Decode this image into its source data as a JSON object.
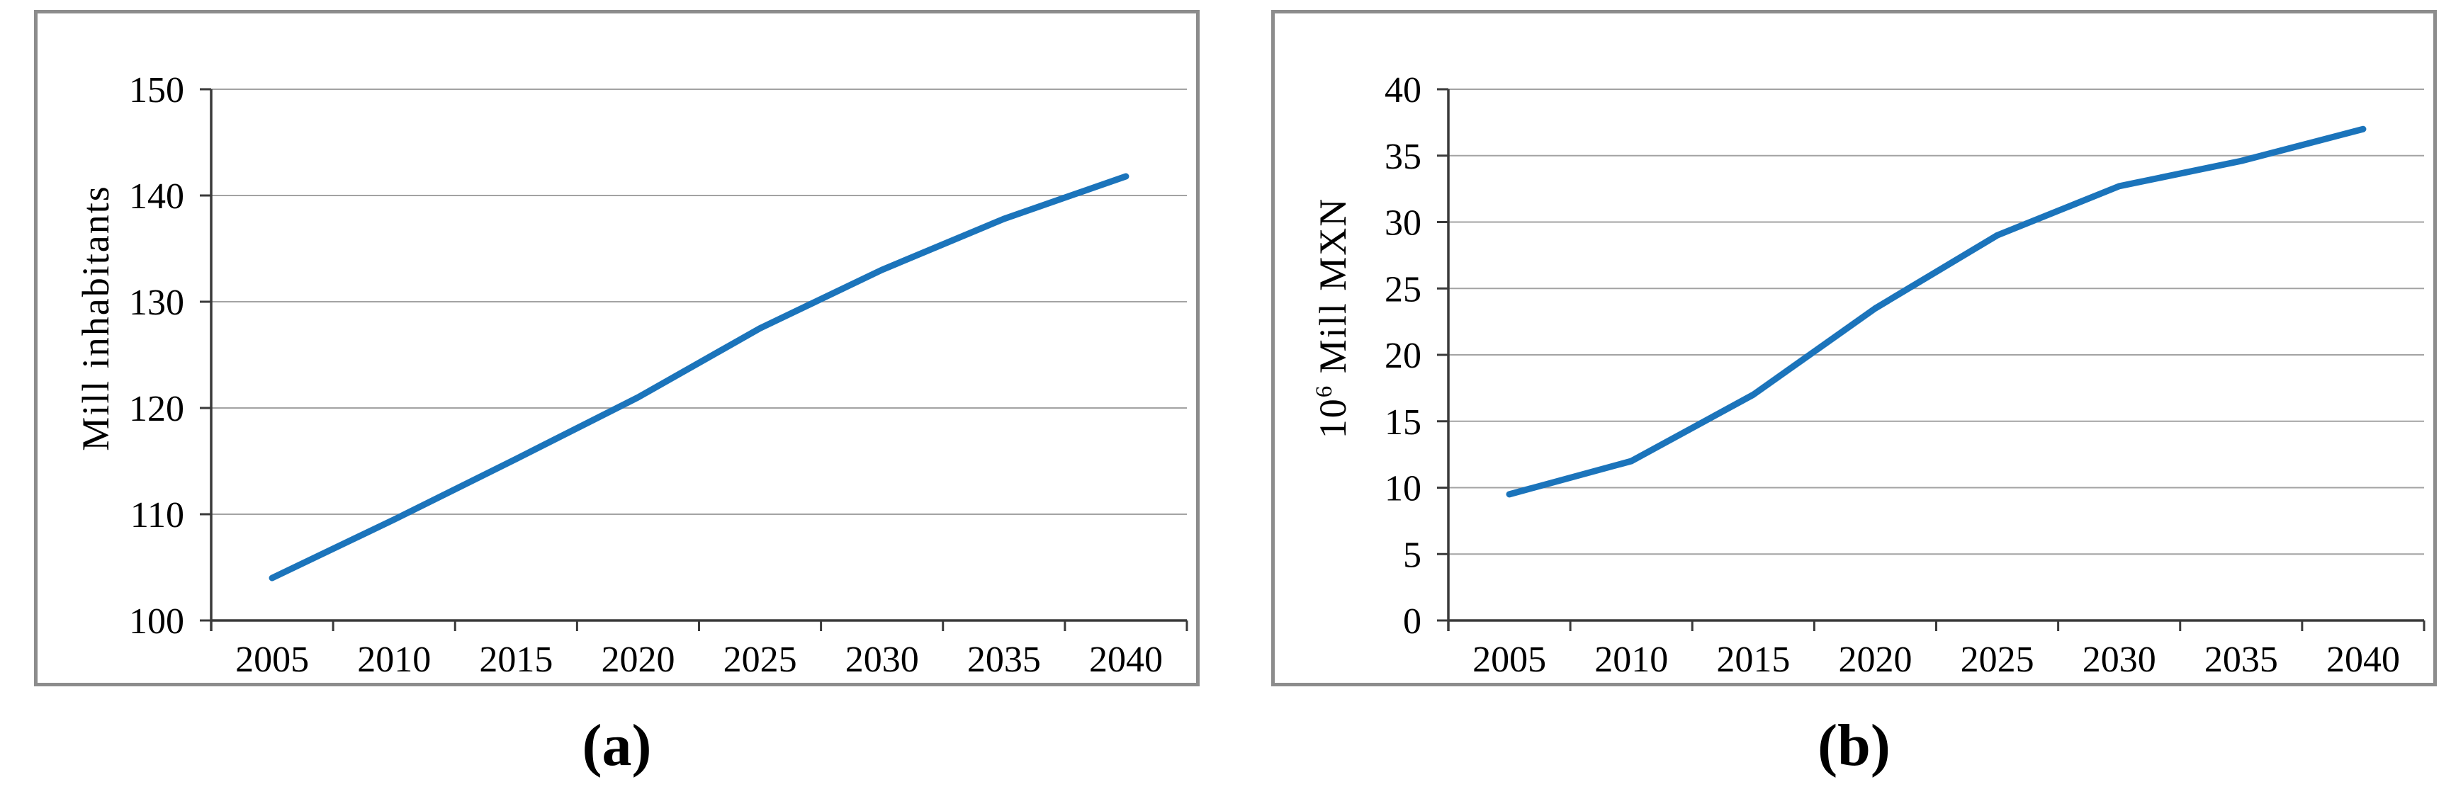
{
  "styles": {
    "line_color": "#1b74bb",
    "grid_color": "#a3a3a3",
    "axis_color": "#3a3a3a",
    "panel_border_color": "#8c8c8c",
    "text_color": "#000000",
    "background": "#ffffff"
  },
  "chart_data": [
    {
      "id": "a",
      "type": "line",
      "caption": "(a)",
      "title": "",
      "xlabel": "",
      "ylabel": "Mill inhabitants",
      "categories": [
        "2005",
        "2010",
        "2015",
        "2020",
        "2025",
        "2030",
        "2035",
        "2040"
      ],
      "values": [
        104,
        109.5,
        115.2,
        121,
        127.5,
        133,
        137.8,
        141.8
      ],
      "ylim": [
        100,
        150
      ],
      "ytick_step": 10,
      "ytick_labels": [
        "100",
        "110",
        "120",
        "130",
        "140",
        "150"
      ],
      "grid": true,
      "legend": "none"
    },
    {
      "id": "b",
      "type": "line",
      "caption": "(b)",
      "title": "",
      "xlabel": "",
      "ylabel": "10⁶ Mill MXN",
      "ylabel_rich": {
        "pre": "10",
        "sup": "6",
        "post": " Mill MXN"
      },
      "categories": [
        "2005",
        "2010",
        "2015",
        "2020",
        "2025",
        "2030",
        "2035",
        "2040"
      ],
      "values": [
        9.5,
        12,
        17,
        23.5,
        29,
        32.7,
        34.6,
        37
      ],
      "ylim": [
        0,
        40
      ],
      "ytick_step": 5,
      "ytick_labels": [
        "0",
        "5",
        "10",
        "15",
        "20",
        "25",
        "30",
        "35",
        "40"
      ],
      "grid": true,
      "legend": "none"
    }
  ]
}
